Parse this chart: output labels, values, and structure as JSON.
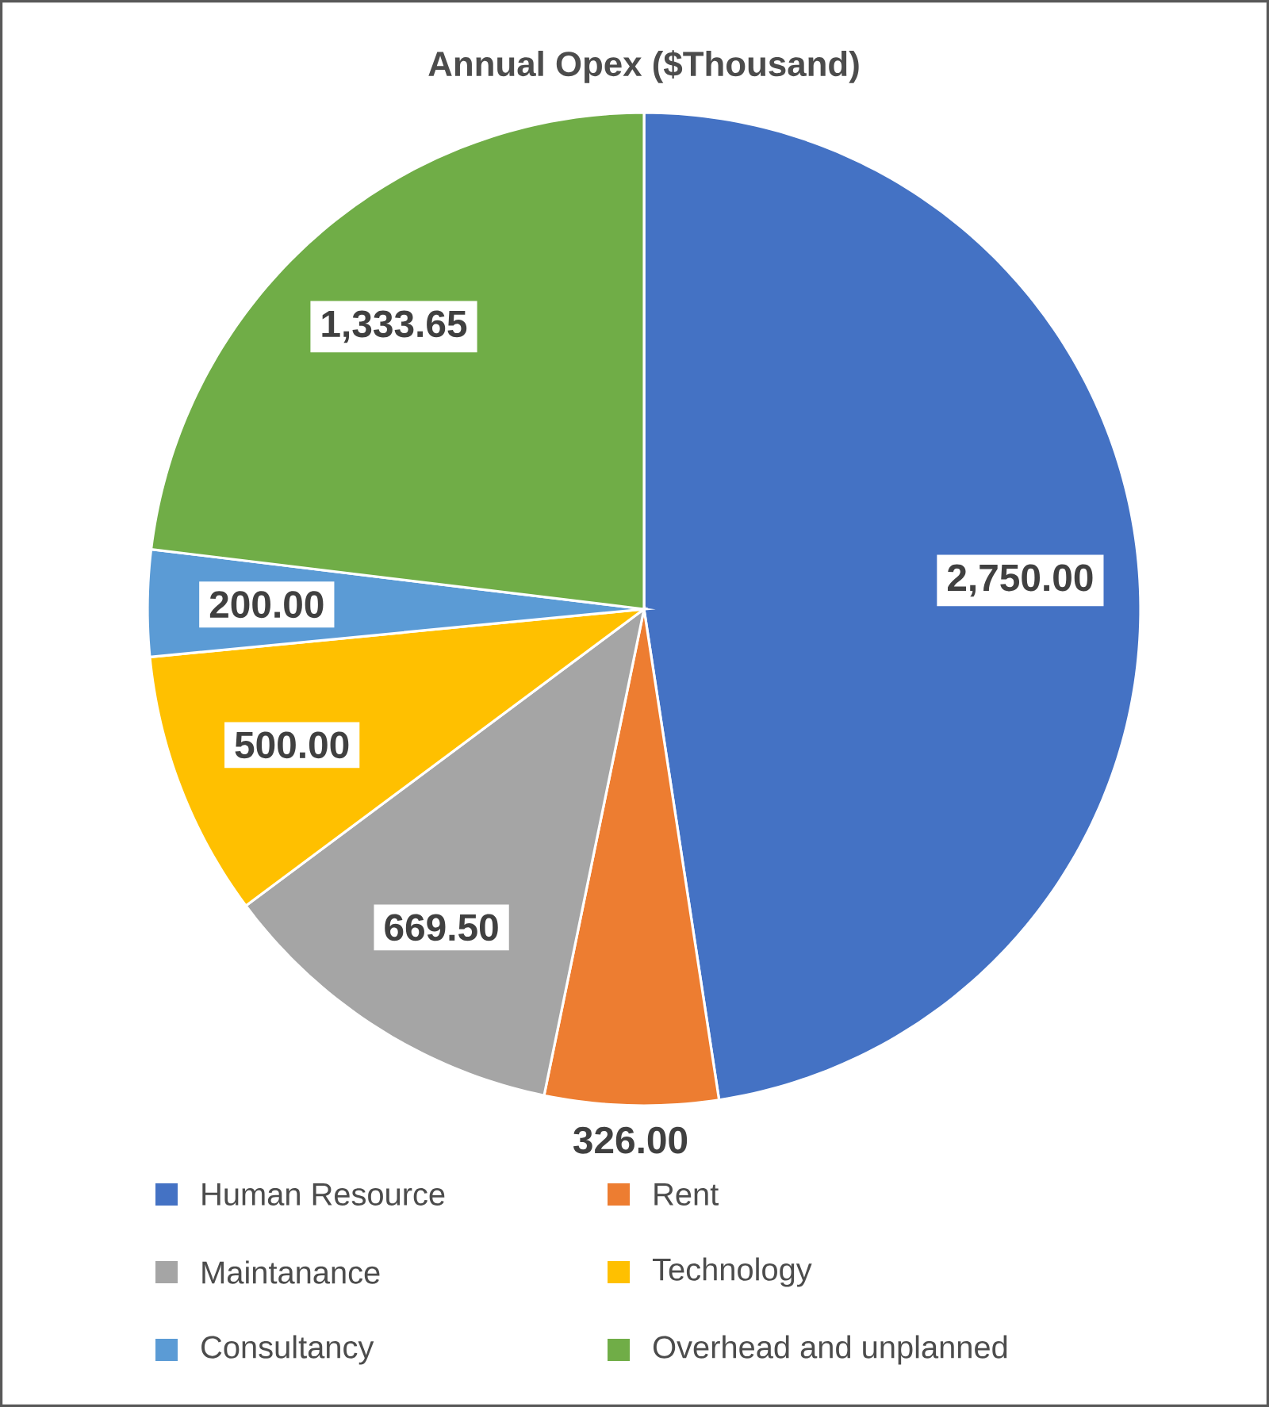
{
  "chart_data": {
    "type": "pie",
    "title": "Annual Opex ($Thousand)",
    "categories": [
      "Human Resource",
      "Rent",
      "Maintanance",
      "Technology",
      "Consultancy",
      "Overhead and unplanned"
    ],
    "values": [
      2750,
      326,
      669.5,
      500,
      200,
      1333.65
    ],
    "value_labels": [
      "2,750.00",
      "326.00",
      "669.50",
      "500.00",
      "200.00",
      "1,333.65"
    ],
    "colors": [
      "#4472c4",
      "#ed7d31",
      "#a5a5a5",
      "#ffc000",
      "#5b9bd5",
      "#70ad47"
    ],
    "legend": "bottom"
  }
}
